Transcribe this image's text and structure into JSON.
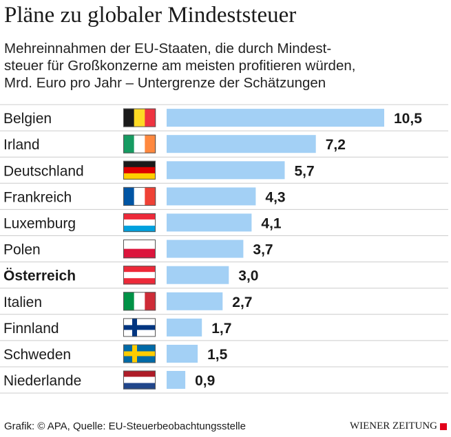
{
  "title": "Pläne zu globaler Mindeststeuer",
  "subtitle_lines": [
    "Mehreinnahmen der EU-Staaten, die durch Mindest-",
    "steuer für Großkonzerne am meisten profitieren würden,",
    "Mrd. Euro pro Jahr – Untergrenze der Schätzungen"
  ],
  "footer": "Grafik: © APA, Quelle: EU-Steuerbeobachtungsstelle",
  "brand": "WIENER ZEITUNG",
  "colors": {
    "bar": "#a3d0f5",
    "divider": "#cccccc",
    "brand_square": "#e2001a"
  },
  "chart_data": {
    "type": "bar",
    "orientation": "horizontal",
    "unit": "Mrd. Euro pro Jahr",
    "categories": [
      "Belgien",
      "Irland",
      "Deutschland",
      "Frankreich",
      "Luxemburg",
      "Polen",
      "Österreich",
      "Italien",
      "Finnland",
      "Schweden",
      "Niederlande"
    ],
    "values": [
      10.5,
      7.2,
      5.7,
      4.3,
      4.1,
      3.7,
      3.0,
      2.7,
      1.7,
      1.5,
      0.9
    ],
    "value_labels": [
      "10,5",
      "7,2",
      "5,7",
      "4,3",
      "4,1",
      "3,7",
      "3,0",
      "2,7",
      "1,7",
      "1,5",
      "0,9"
    ],
    "highlight": "Österreich",
    "flag_icons": [
      "flag-belgium-icon",
      "flag-ireland-icon",
      "flag-germany-icon",
      "flag-france-icon",
      "flag-luxembourg-icon",
      "flag-poland-icon",
      "flag-austria-icon",
      "flag-italy-icon",
      "flag-finland-icon",
      "flag-sweden-icon",
      "flag-netherlands-icon"
    ],
    "grid": false
  }
}
